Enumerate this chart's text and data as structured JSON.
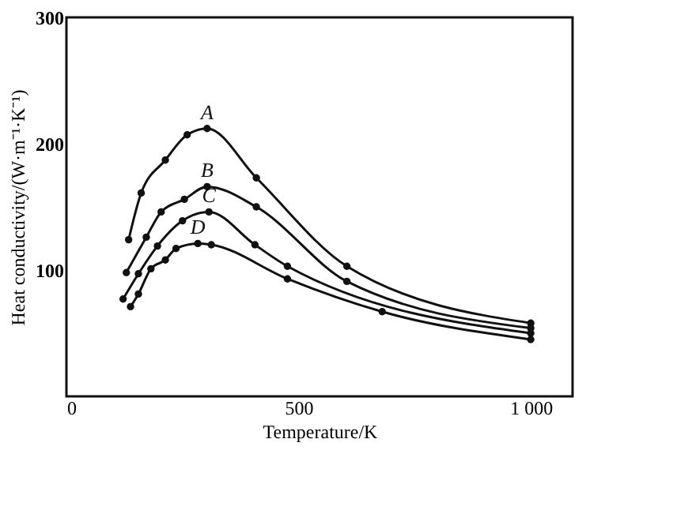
{
  "chart_data": {
    "type": "line",
    "xlabel": "Temperature/K",
    "ylabel": "Heat conductivity/(W·m⁻¹·K⁻¹)",
    "xlim": [
      0,
      1090
    ],
    "ylim": [
      0,
      300
    ],
    "xticks": [
      0,
      500,
      {
        "value": 1000,
        "label": "1 000"
      }
    ],
    "yticks": [
      100,
      200,
      300
    ],
    "grid": false,
    "legend": false,
    "marker": "circle",
    "line_style": "solid",
    "series": [
      {
        "name": "A",
        "color": "#111111",
        "x": [
          134,
          161,
          213,
          260,
          303,
          409,
          604,
          1000
        ],
        "values": [
          124,
          161,
          187,
          207,
          212,
          173,
          103,
          58
        ]
      },
      {
        "name": "B",
        "color": "#111111",
        "x": [
          129,
          172,
          204,
          254,
          303,
          409,
          604,
          1000
        ],
        "values": [
          98,
          126,
          146,
          156,
          166,
          150,
          91,
          54
        ]
      },
      {
        "name": "C",
        "color": "#111111",
        "x": [
          122,
          155,
          196,
          250,
          307,
          406,
          476,
          1000
        ],
        "values": [
          77,
          97,
          119,
          139,
          146,
          120,
          103,
          50
        ]
      },
      {
        "name": "D",
        "color": "#111111",
        "x": [
          138,
          155,
          182,
          213,
          236,
          283,
          312,
          476,
          680,
          1000
        ],
        "values": [
          71,
          81,
          101,
          108,
          117,
          121,
          120,
          93,
          67,
          45
        ]
      }
    ]
  }
}
